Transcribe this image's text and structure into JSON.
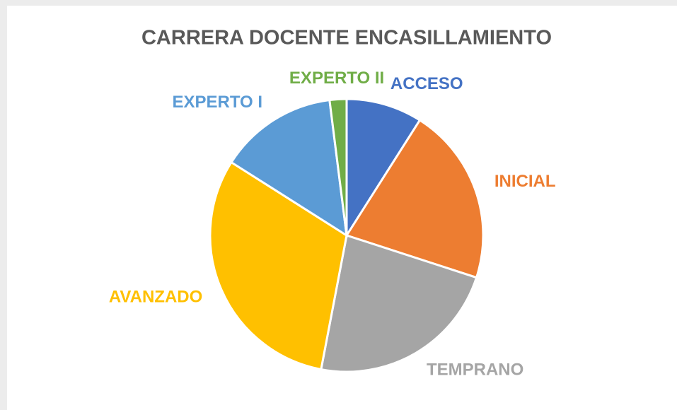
{
  "chart_data": {
    "type": "pie",
    "title": "CARRERA DOCENTE ENCASILLAMIENTO",
    "categories": [
      "ACCESO",
      "INICIAL",
      "TEMPRANO",
      "AVANZADO",
      "EXPERTO I",
      "EXPERTO II"
    ],
    "values": [
      9,
      21,
      23,
      31,
      14,
      2
    ],
    "colors": [
      "#4472c4",
      "#ed7d31",
      "#a5a5a5",
      "#ffc000",
      "#5b9bd5",
      "#70ad47"
    ]
  }
}
